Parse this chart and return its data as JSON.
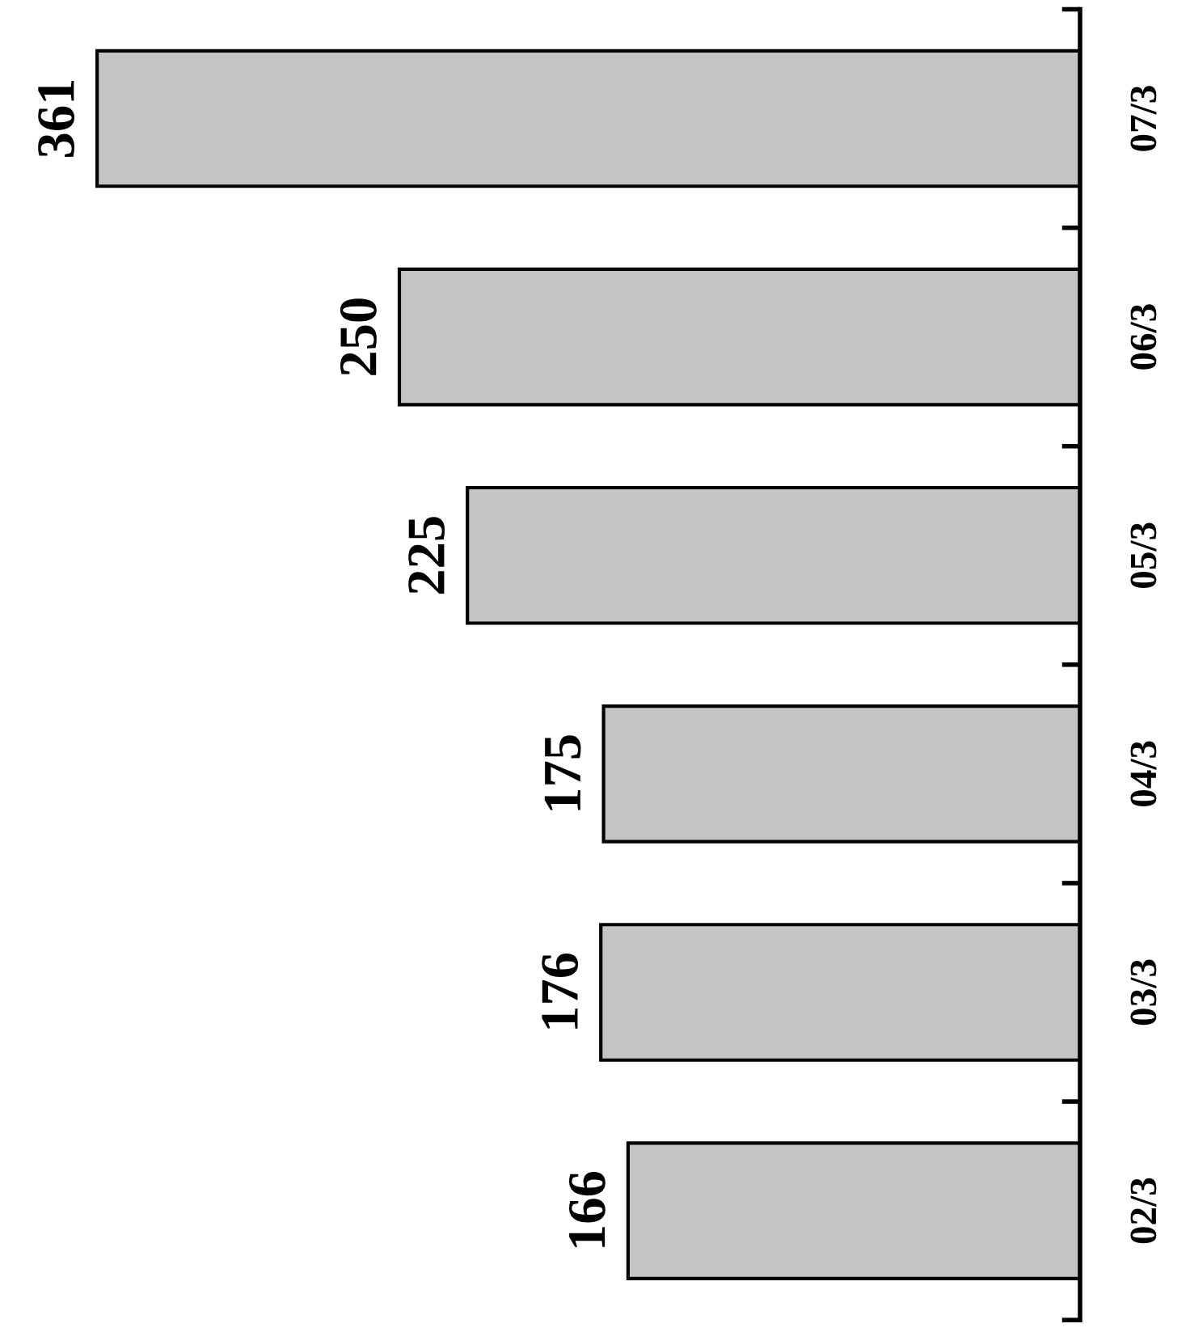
{
  "chart_data": {
    "type": "bar",
    "orientation": "horizontal",
    "categories": [
      "07/3",
      "06/3",
      "05/3",
      "04/3",
      "03/3",
      "02/3"
    ],
    "values": [
      361,
      250,
      225,
      175,
      176,
      166
    ],
    "color": "#c4c4c4",
    "data_labels": true,
    "grid": false,
    "legend": false
  }
}
